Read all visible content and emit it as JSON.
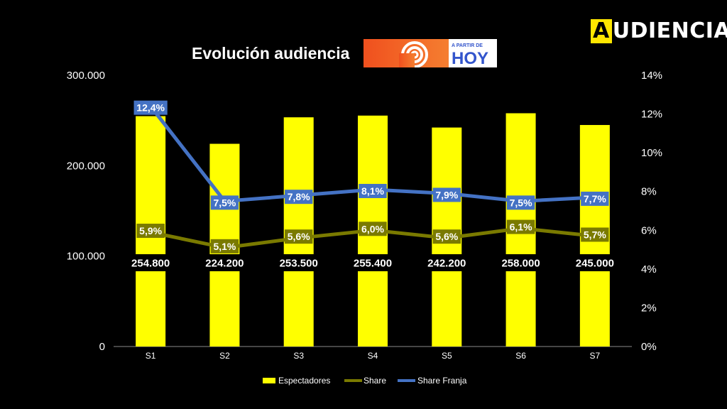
{
  "brand": {
    "first_letter": "A",
    "rest": "UDIENCIAS"
  },
  "show_logo": {
    "small_text": "A PARTIR DE",
    "big_text": "HOY"
  },
  "colors": {
    "background": "#000000",
    "bars": "#ffff00",
    "share": "#7a7a00",
    "share_franja": "#4472c4",
    "text": "#ffffff"
  },
  "chart_data": {
    "type": "bar",
    "title": "Evolución audiencia",
    "categories": [
      "S1",
      "S2",
      "S3",
      "S4",
      "S5",
      "S6",
      "S7"
    ],
    "y_left": {
      "ticks": [
        "300.000",
        "200.000",
        "100.000",
        "0"
      ],
      "range": [
        0,
        300000
      ]
    },
    "y_right": {
      "ticks": [
        "14%",
        "12%",
        "10%",
        "8%",
        "6%",
        "4%",
        "2%",
        "0%"
      ],
      "range": [
        0,
        14
      ]
    },
    "legend_position": "bottom",
    "grid": false,
    "series": [
      {
        "name": "Espectadores",
        "type": "bar",
        "axis": "left",
        "values": [
          254800,
          224200,
          253500,
          255400,
          242200,
          258000,
          245000
        ],
        "labels": [
          "254.800",
          "224.200",
          "253.500",
          "255.400",
          "242.200",
          "258.000",
          "245.000"
        ]
      },
      {
        "name": "Share",
        "type": "line",
        "axis": "right",
        "values": [
          5.9,
          5.1,
          5.6,
          6.0,
          5.6,
          6.1,
          5.7
        ],
        "labels": [
          "5,9%",
          "5,1%",
          "5,6%",
          "6,0%",
          "5,6%",
          "6,1%",
          "5,7%"
        ]
      },
      {
        "name": "Share Franja",
        "type": "line",
        "axis": "right",
        "values": [
          12.4,
          7.5,
          7.8,
          8.1,
          7.9,
          7.5,
          7.7
        ],
        "labels": [
          "12,4%",
          "7,5%",
          "7,8%",
          "8,1%",
          "7,9%",
          "7,5%",
          "7,7%"
        ]
      }
    ]
  }
}
